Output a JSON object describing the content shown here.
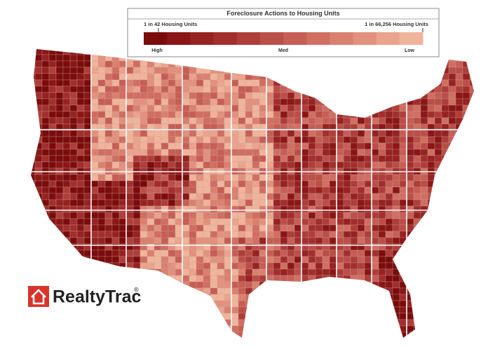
{
  "legend": {
    "title": "Foreclosure Actions to Housing Units",
    "high_end_label": "1 in 42 Housing Units",
    "low_end_label": "1 in 66,256 Housing Units",
    "scale_labels": [
      "High",
      "Med",
      "Low"
    ],
    "colors": [
      "#7a0c0c",
      "#8a1616",
      "#962222",
      "#a22e2e",
      "#ae3e3a",
      "#ba4e48",
      "#c65e56",
      "#d06e62",
      "#da806f",
      "#e2917e",
      "#eaa38d",
      "#f0b49c"
    ]
  },
  "logo": {
    "text": "RealtyTrac",
    "mark": "®"
  }
}
